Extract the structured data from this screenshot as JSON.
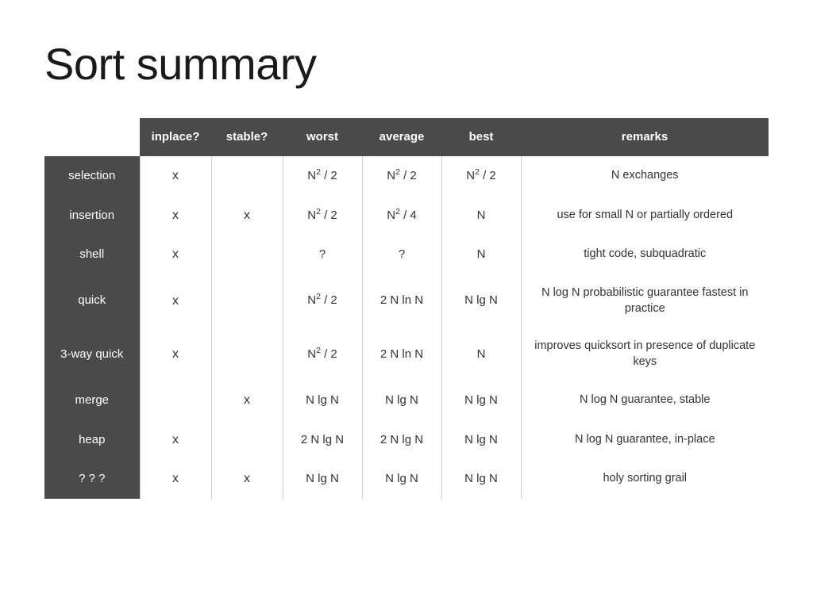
{
  "title": "Sort summary",
  "header_bg": "#4a4a4a",
  "header_fg": "#ffffff",
  "cell_border": "#d0d0d0",
  "title_fontsize": 56,
  "cell_fontsize": 15,
  "columns": {
    "algorithm": "",
    "inplace": "inplace?",
    "stable": "stable?",
    "worst": "worst",
    "average": "average",
    "best": "best",
    "remarks": "remarks"
  },
  "rows": [
    {
      "name": "selection",
      "inplace": "x",
      "stable": "",
      "worst": "N 2 / 2",
      "average": "N 2 / 2",
      "best": "N 2 / 2",
      "remarks": "N exchanges"
    },
    {
      "name": "insertion",
      "inplace": "x",
      "stable": "x",
      "worst": "N 2 / 2",
      "average": "N 2 / 4",
      "best": "N",
      "remarks": "use for small N or partially ordered"
    },
    {
      "name": "shell",
      "inplace": "x",
      "stable": "",
      "worst": "?",
      "average": "?",
      "best": "N",
      "remarks": "tight code, subquadratic"
    },
    {
      "name": "quick",
      "inplace": "x",
      "stable": "",
      "worst": "N 2 / 2",
      "average": "2 N ln N",
      "best": "N lg N",
      "remarks": "N log N  probabilistic guarantee fastest in practice"
    },
    {
      "name": "3-way quick",
      "inplace": "x",
      "stable": "",
      "worst": "N 2 / 2",
      "average": "2 N ln N",
      "best": "N",
      "remarks": "improves quicksort in presence of duplicate keys"
    },
    {
      "name": "merge",
      "inplace": "",
      "stable": "x",
      "worst": "N lg N",
      "average": "N lg N",
      "best": "N lg N",
      "remarks": "N log N  guarantee, stable"
    },
    {
      "name": "heap",
      "inplace": "x",
      "stable": "",
      "worst": "2 N lg N",
      "average": "2 N lg N",
      "best": "N lg N",
      "remarks": "N log N  guarantee, in-place"
    },
    {
      "name": "? ? ?",
      "inplace": "x",
      "stable": "x",
      "worst": "N lg N",
      "average": "N lg N",
      "best": "N lg N",
      "remarks": "holy sorting grail"
    }
  ]
}
